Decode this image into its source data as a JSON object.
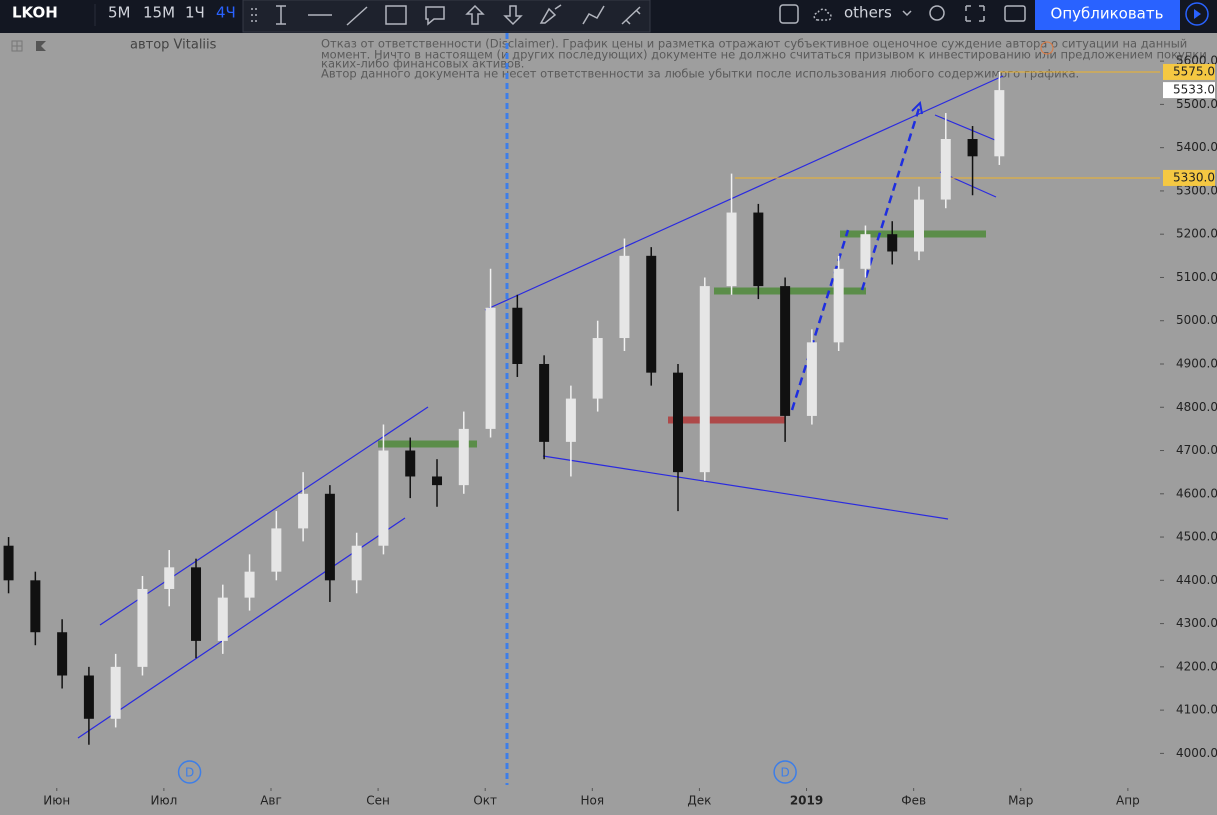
{
  "toolbar": {
    "symbol": "LKOH",
    "intervals": [
      "5М",
      "15М",
      "1Ч",
      "4Ч"
    ],
    "chart_type_label": "others",
    "publish": "Опубликовать"
  },
  "chart_data": {
    "type": "candlestick",
    "author": "автор Vitaliis",
    "disclaimer": [
      "Отказ от ответственности (Disclaimer). График цены и разметка отражают субъективное оценочное суждение автора о ситуации на данный",
      "момент. Ничто в настоящем (и других последующих) документе не должно считаться призывом к инвестированию или предложением покупки",
      "каких-либо финансовых активов.",
      "Автор данного документа не несет ответственности за любые убытки после использования любого содержимого графика."
    ],
    "x": [
      -0.45,
      -0.2,
      0.05,
      0.3,
      0.55,
      0.8,
      1.05,
      1.3,
      1.55,
      1.8,
      2.05,
      2.3,
      2.55,
      2.8,
      3.05,
      3.3,
      3.55,
      3.8,
      4.05,
      4.3,
      4.55,
      4.8,
      5.05,
      5.3,
      5.55,
      5.8,
      6.05,
      6.3,
      6.55,
      6.8,
      7.05,
      7.3,
      7.55,
      7.8,
      8.05,
      8.3,
      8.55,
      8.8
    ],
    "open": [
      4480,
      4400,
      4280,
      4180,
      4080,
      4200,
      4380,
      4430,
      4260,
      4360,
      4420,
      4520,
      4600,
      4400,
      4480,
      4700,
      4640,
      4620,
      4750,
      5030,
      4900,
      4720,
      4820,
      4960,
      5150,
      4880,
      4650,
      5080,
      5250,
      5080,
      4780,
      4950,
      5120,
      5200,
      5160,
      5280,
      5420,
      5380
    ],
    "high": [
      4500,
      4420,
      4310,
      4200,
      4230,
      4410,
      4470,
      4450,
      4390,
      4460,
      4560,
      4650,
      4620,
      4510,
      4760,
      4730,
      4680,
      4790,
      5120,
      5060,
      4920,
      4850,
      5000,
      5190,
      5170,
      4900,
      5100,
      5340,
      5270,
      5100,
      4980,
      5150,
      5220,
      5230,
      5310,
      5480,
      5450,
      5575
    ],
    "low": [
      4370,
      4250,
      4150,
      4020,
      4060,
      4180,
      4340,
      4220,
      4230,
      4330,
      4400,
      4490,
      4350,
      4370,
      4460,
      4590,
      4570,
      4600,
      4730,
      4870,
      4680,
      4640,
      4790,
      4930,
      4850,
      4560,
      4630,
      5060,
      5050,
      4720,
      4760,
      4930,
      5100,
      5130,
      5140,
      5260,
      5290,
      5360
    ],
    "close": [
      4400,
      4280,
      4180,
      4080,
      4200,
      4380,
      4430,
      4260,
      4360,
      4420,
      4520,
      4600,
      4400,
      4480,
      4700,
      4640,
      4620,
      4750,
      5030,
      4900,
      4720,
      4820,
      4960,
      5150,
      4880,
      4650,
      5080,
      5250,
      5080,
      4780,
      4950,
      5120,
      5200,
      5160,
      5280,
      5420,
      5380,
      5533
    ],
    "up_color": "#e6e6e6",
    "down_color": "#111111",
    "xlim": [
      -0.53,
      10.3
    ],
    "xticks": [
      {
        "value": 0,
        "label": "Июн"
      },
      {
        "value": 1,
        "label": "Июл"
      },
      {
        "value": 2,
        "label": "Авг"
      },
      {
        "value": 3,
        "label": "Сен"
      },
      {
        "value": 4,
        "label": "Окт"
      },
      {
        "value": 5,
        "label": "Ноя"
      },
      {
        "value": 6,
        "label": "Дек"
      },
      {
        "value": 7,
        "label": "2019"
      },
      {
        "value": 8,
        "label": "Фев"
      },
      {
        "value": 9,
        "label": "Мар"
      },
      {
        "value": 10,
        "label": "Апр"
      }
    ],
    "ylim": [
      3920,
      5665
    ],
    "yticks": [
      {
        "value": 4000,
        "label": "4000.0"
      },
      {
        "value": 4100,
        "label": "4100.0"
      },
      {
        "value": 4200,
        "label": "4200.0"
      },
      {
        "value": 4300,
        "label": "4300.0"
      },
      {
        "value": 4400,
        "label": "4400.0"
      },
      {
        "value": 4500,
        "label": "4500.0"
      },
      {
        "value": 4600,
        "label": "4600.0"
      },
      {
        "value": 4700,
        "label": "4700.0"
      },
      {
        "value": 4800,
        "label": "4800.0"
      },
      {
        "value": 4900,
        "label": "4900.0"
      },
      {
        "value": 5000,
        "label": "5000.0"
      },
      {
        "value": 5100,
        "label": "5100.0"
      },
      {
        "value": 5200,
        "label": "5200.0"
      },
      {
        "value": 5300,
        "label": "5300.0"
      },
      {
        "value": 5400,
        "label": "5400.0"
      },
      {
        "value": 5500,
        "label": "5500.0"
      },
      {
        "value": 5600,
        "label": "5600.0"
      }
    ],
    "price_labels": [
      {
        "value": 5575,
        "label": "5575.0",
        "color": "#f5c842"
      },
      {
        "value": 5533,
        "label": "5533.0",
        "color": "#ffffff"
      },
      {
        "value": 5330,
        "label": "5330.0",
        "color": "#f5c842"
      }
    ],
    "event_markers": [
      {
        "x": 1.24,
        "label": "D"
      },
      {
        "x": 6.8,
        "label": "D"
      }
    ]
  }
}
